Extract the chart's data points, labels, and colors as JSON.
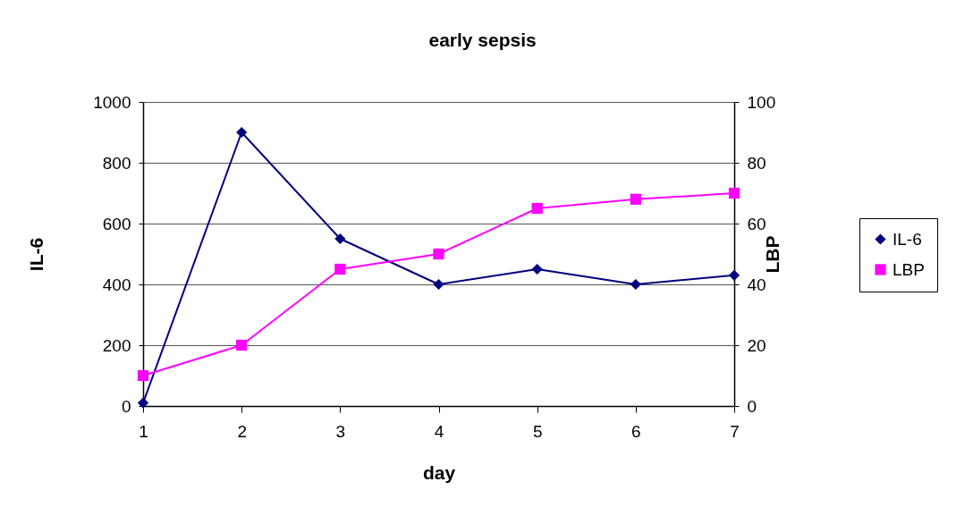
{
  "chart_data": {
    "type": "line",
    "title": "early sepsis",
    "xlabel": "day",
    "ylabel": "IL-6",
    "y2label": "LBP",
    "x": [
      1,
      2,
      3,
      4,
      5,
      6,
      7
    ],
    "series": [
      {
        "name": "IL-6",
        "color": "#000080",
        "marker": "diamond",
        "values": [
          10,
          900,
          550,
          400,
          450,
          400,
          430
        ]
      },
      {
        "name": "LBP",
        "color": "#ff00ff",
        "marker": "square",
        "axis": "y2",
        "values": [
          10,
          20,
          45,
          50,
          65,
          68,
          70
        ]
      }
    ],
    "xlim": [
      1,
      7
    ],
    "xticks": [
      1,
      2,
      3,
      4,
      5,
      6,
      7
    ],
    "ylim": [
      0,
      1000
    ],
    "yticks": [
      0,
      200,
      400,
      600,
      800,
      1000
    ],
    "y2lim": [
      0,
      100
    ],
    "y2ticks": [
      0,
      20,
      40,
      60,
      80,
      100
    ],
    "grid": "y",
    "legend": "right",
    "line_style": "solid"
  }
}
